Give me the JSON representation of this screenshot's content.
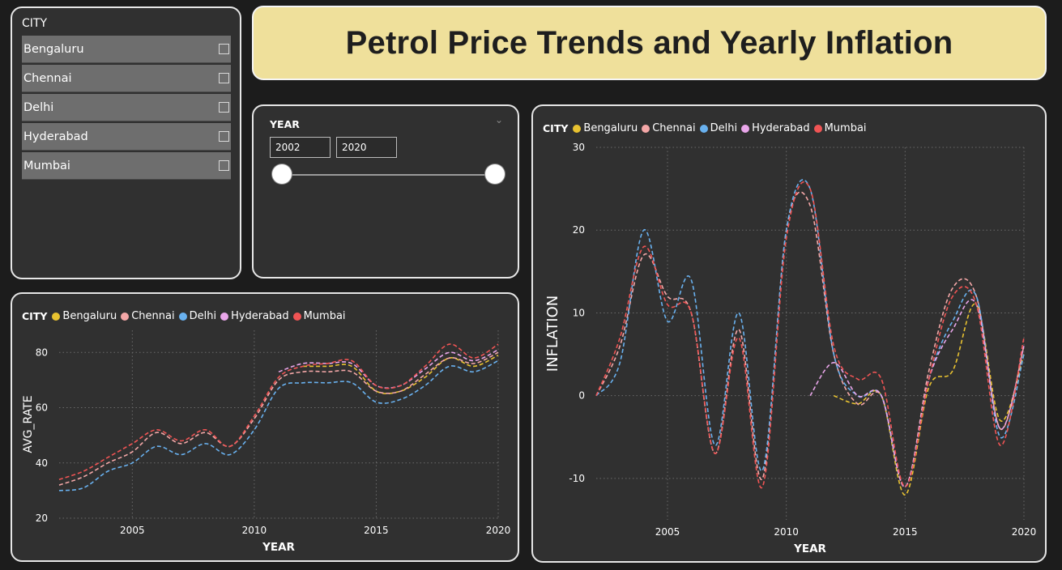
{
  "title": "Petrol Price Trends and Yearly Inflation",
  "city_slicer": {
    "title": "CITY",
    "items": [
      "Bengaluru",
      "Chennai",
      "Delhi",
      "Hyderabad",
      "Mumbai"
    ]
  },
  "year_slicer": {
    "title": "YEAR",
    "start": "2002",
    "end": "2020"
  },
  "colors": {
    "Bengaluru": "#e8c230",
    "Chennai": "#f4a7a7",
    "Delhi": "#69b1ef",
    "Hyderabad": "#e9a6ea",
    "Mumbai": "#f05454"
  },
  "legend": {
    "title": "CITY",
    "items": [
      "Bengaluru",
      "Chennai",
      "Delhi",
      "Hyderabad",
      "Mumbai"
    ]
  },
  "chart_data": [
    {
      "type": "line",
      "title": "",
      "xlabel": "YEAR",
      "ylabel": "AVG_RATE",
      "xlim": [
        2002,
        2020
      ],
      "ylim": [
        20,
        88
      ],
      "xticks": [
        2005,
        2010,
        2015,
        2020
      ],
      "yticks": [
        20,
        40,
        60,
        80
      ],
      "line_style": "dashed",
      "grid": true,
      "x": [
        2002,
        2003,
        2004,
        2005,
        2006,
        2007,
        2008,
        2009,
        2010,
        2011,
        2012,
        2013,
        2014,
        2015,
        2016,
        2017,
        2018,
        2019,
        2020
      ],
      "series": [
        {
          "name": "Bengaluru",
          "x": [
            2012,
            2013,
            2014,
            2015,
            2016,
            2017,
            2018,
            2019,
            2020
          ],
          "values": [
            75,
            75,
            75,
            66,
            66,
            71,
            78,
            75,
            79
          ]
        },
        {
          "name": "Chennai",
          "values": [
            32,
            35,
            40,
            44,
            51,
            47,
            51,
            46,
            56,
            70,
            73,
            73,
            73,
            66,
            66,
            72,
            78,
            76,
            80
          ]
        },
        {
          "name": "Delhi",
          "values": [
            30,
            31,
            37,
            40,
            46,
            43,
            47,
            43,
            52,
            67,
            69,
            69,
            69,
            62,
            63,
            68,
            75,
            73,
            77
          ]
        },
        {
          "name": "Hyderabad",
          "x": [
            2011,
            2012,
            2013,
            2014,
            2015,
            2016,
            2017,
            2018,
            2019,
            2020
          ],
          "values": [
            73,
            76,
            76,
            76,
            68,
            68,
            74,
            80,
            77,
            81
          ]
        },
        {
          "name": "Mumbai",
          "values": [
            34,
            37,
            42,
            47,
            52,
            48,
            52,
            46,
            57,
            71,
            75,
            76,
            77,
            68,
            68,
            75,
            83,
            78,
            83
          ]
        }
      ]
    },
    {
      "type": "line",
      "title": "",
      "xlabel": "YEAR",
      "ylabel": "INFLATION",
      "xlim": [
        2002,
        2020
      ],
      "ylim": [
        -15,
        30
      ],
      "xticks": [
        2005,
        2010,
        2015,
        2020
      ],
      "yticks": [
        -10,
        0,
        10,
        20,
        30
      ],
      "line_style": "dashed",
      "grid": true,
      "x": [
        2002,
        2003,
        2004,
        2005,
        2006,
        2007,
        2008,
        2009,
        2010,
        2011,
        2012,
        2013,
        2014,
        2015,
        2016,
        2017,
        2018,
        2019,
        2020
      ],
      "series": [
        {
          "name": "Bengaluru",
          "x": [
            2012,
            2013,
            2014,
            2015,
            2016,
            2017,
            2018,
            2019,
            2020
          ],
          "values": [
            0,
            -1,
            0,
            -12,
            1,
            3,
            11,
            -3,
            5
          ]
        },
        {
          "name": "Chennai",
          "values": [
            0,
            6,
            17,
            12,
            10,
            -7,
            8,
            -10,
            20,
            23,
            5,
            -1,
            0,
            -11,
            3,
            13,
            12,
            -4,
            6
          ]
        },
        {
          "name": "Delhi",
          "values": [
            0,
            4,
            20,
            9,
            14,
            -6,
            10,
            -9,
            20,
            25,
            5,
            0,
            0,
            -11,
            2,
            9,
            12,
            -5,
            5
          ]
        },
        {
          "name": "Hyderabad",
          "x": [
            2011,
            2012,
            2013,
            2014,
            2015,
            2016,
            2017,
            2018,
            2019,
            2020
          ],
          "values": [
            0,
            4,
            0,
            0,
            -11,
            2,
            8,
            11,
            -4,
            6
          ]
        },
        {
          "name": "Mumbai",
          "values": [
            0,
            7,
            18,
            11,
            10,
            -7,
            7,
            -11,
            19,
            25,
            6,
            2,
            2,
            -11,
            2,
            12,
            11,
            -6,
            7
          ]
        }
      ]
    }
  ]
}
